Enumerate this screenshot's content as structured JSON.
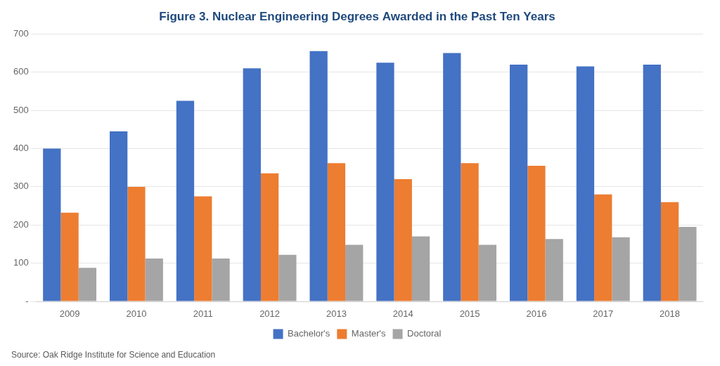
{
  "chart_data": {
    "type": "bar",
    "title": "Figure 3. Nuclear Engineering Degrees Awarded in the Past Ten Years",
    "categories": [
      "2009",
      "2010",
      "2011",
      "2012",
      "2013",
      "2014",
      "2015",
      "2016",
      "2017",
      "2018"
    ],
    "series": [
      {
        "name": "Bachelor's",
        "color": "#4472C4",
        "values": [
          400,
          445,
          525,
          610,
          655,
          625,
          650,
          620,
          615,
          620
        ]
      },
      {
        "name": "Master's",
        "color": "#ED7D31",
        "values": [
          232,
          300,
          275,
          335,
          362,
          320,
          362,
          355,
          280,
          260
        ]
      },
      {
        "name": "Doctoral",
        "color": "#A5A5A5",
        "values": [
          88,
          112,
          112,
          122,
          148,
          170,
          148,
          163,
          168,
          195
        ]
      }
    ],
    "ylim": [
      0,
      700
    ],
    "yticks": [
      {
        "value": 0,
        "label": "-"
      },
      100,
      200,
      300,
      400,
      500,
      600,
      700
    ],
    "grid": true,
    "legend": "bottom",
    "annotations": [
      "Source: Oak Ridge Institute for Science and Education"
    ]
  }
}
